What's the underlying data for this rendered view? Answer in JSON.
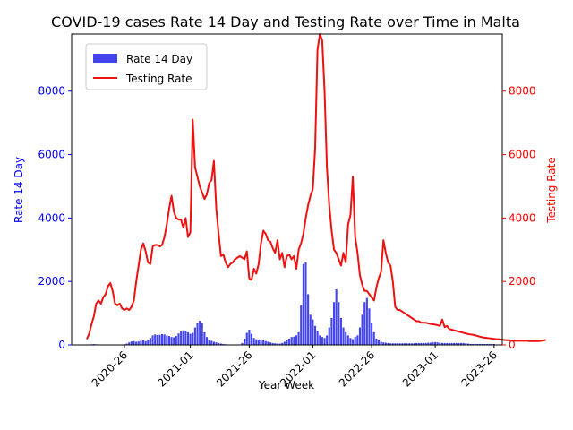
{
  "chart_data": {
    "type": "bar+line",
    "title": "COVID-19 cases Rate 14 Day and Testing Rate over Time in Malta",
    "xlabel": "Year Week",
    "ylabel_left": "Rate 14 Day",
    "ylabel_right": "Testing Rate",
    "x_ticks": [
      "2020-26",
      "2021-01",
      "2021-26",
      "2022-01",
      "2022-26",
      "2023-01",
      "2023-26"
    ],
    "y_ticks": [
      0,
      2000,
      4000,
      6000,
      8000
    ],
    "y_tick_labels": [
      "0",
      "2000",
      "4000",
      "6000",
      "8000"
    ],
    "ylim_left": [
      0,
      9800
    ],
    "ylim_right": [
      0,
      9800
    ],
    "legend_placement": "upper-left",
    "colors": {
      "bars": "#4444ee",
      "line": "#ee1111",
      "left_axis": "#0000ff",
      "right_axis": "#ff0000"
    },
    "series": [
      {
        "name": "Rate 14 Day",
        "kind": "bar",
        "axis": "left",
        "x_start": "2020-10",
        "values": [
          10,
          15,
          20,
          25,
          20,
          15,
          10,
          8,
          5,
          4,
          4,
          3,
          3,
          4,
          6,
          10,
          20,
          40,
          80,
          110,
          120,
          100,
          110,
          130,
          150,
          120,
          150,
          220,
          300,
          330,
          310,
          320,
          340,
          330,
          300,
          280,
          250,
          240,
          280,
          360,
          420,
          460,
          440,
          400,
          350,
          380,
          550,
          700,
          760,
          700,
          400,
          250,
          150,
          130,
          100,
          80,
          60,
          40,
          30,
          20,
          15,
          12,
          10,
          10,
          10,
          15,
          60,
          200,
          380,
          480,
          350,
          220,
          180,
          170,
          160,
          140,
          120,
          100,
          80,
          60,
          50,
          40,
          40,
          60,
          100,
          150,
          200,
          250,
          260,
          300,
          400,
          1250,
          2550,
          2600,
          1600,
          950,
          800,
          600,
          450,
          300,
          250,
          220,
          300,
          550,
          850,
          1350,
          1750,
          1350,
          850,
          550,
          400,
          300,
          220,
          180,
          250,
          300,
          550,
          950,
          1350,
          1480,
          1150,
          700,
          400,
          200,
          150,
          100,
          80,
          70,
          60,
          50,
          50,
          50,
          50,
          50,
          50,
          50,
          50,
          50,
          50,
          50,
          60,
          60,
          60,
          60,
          60,
          70,
          70,
          80,
          90,
          80,
          70,
          60,
          60,
          60,
          60,
          60,
          60,
          60,
          60,
          60,
          60,
          50,
          40,
          30,
          30,
          30,
          30,
          30,
          30,
          30,
          30,
          30,
          30,
          30
        ]
      },
      {
        "name": "Testing Rate",
        "kind": "line",
        "axis": "right",
        "x_start": "2020-10",
        "values": [
          180,
          350,
          650,
          900,
          1300,
          1400,
          1300,
          1500,
          1600,
          1850,
          1950,
          1700,
          1300,
          1250,
          1300,
          1150,
          1100,
          1150,
          1100,
          1200,
          1400,
          2000,
          2500,
          3000,
          3200,
          2950,
          2600,
          2550,
          3100,
          3150,
          3150,
          3100,
          3150,
          3400,
          3800,
          4300,
          4700,
          4200,
          4000,
          3950,
          3950,
          3700,
          4000,
          3400,
          3550,
          7100,
          5600,
          5300,
          5000,
          4800,
          4600,
          4750,
          5100,
          5200,
          5800,
          4300,
          3500,
          2800,
          2850,
          2600,
          2450,
          2550,
          2600,
          2700,
          2750,
          2800,
          2750,
          2700,
          2950,
          2100,
          2050,
          2400,
          2250,
          2550,
          3200,
          3600,
          3500,
          3300,
          3250,
          3050,
          2900,
          3300,
          2700,
          2900,
          2450,
          2800,
          2850,
          2700,
          2800,
          2400,
          3000,
          3200,
          3500,
          4000,
          4400,
          4700,
          4900,
          6200,
          9300,
          9800,
          9600,
          8000,
          5600,
          4400,
          3600,
          3000,
          2900,
          2700,
          2500,
          2900,
          2600,
          3800,
          4100,
          5300,
          3400,
          2900,
          2200,
          1900,
          1700,
          1700,
          1600,
          1500,
          1400,
          1800,
          2100,
          2300,
          3300,
          2900,
          2600,
          2500,
          2000,
          1200,
          1100,
          1100,
          1050,
          1000,
          950,
          900,
          850,
          800,
          750,
          750,
          700,
          700,
          700,
          680,
          660,
          650,
          640,
          620,
          600,
          800,
          560,
          600,
          500,
          480,
          460,
          440,
          420,
          400,
          380,
          360,
          340,
          330,
          320,
          300,
          280,
          260,
          240,
          230,
          220,
          210,
          200,
          190,
          180,
          180,
          170,
          160,
          150,
          150,
          140,
          130,
          130,
          130,
          130,
          130,
          130,
          130,
          120,
          120,
          120,
          120,
          120,
          130,
          140,
          160
        ]
      }
    ]
  }
}
